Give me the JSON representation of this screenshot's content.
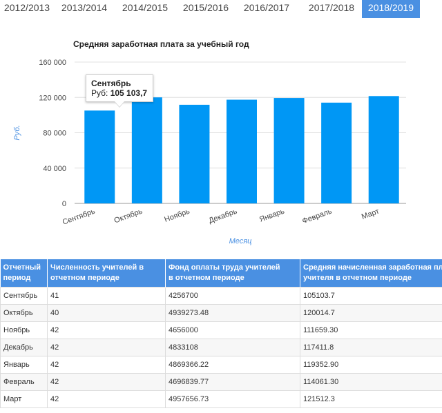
{
  "tabs": [
    {
      "label": "2012/2013",
      "active": false
    },
    {
      "label": "2013/2014",
      "active": false
    },
    {
      "label": "2014/2015",
      "active": false
    },
    {
      "label": "2015/2016",
      "active": false
    },
    {
      "label": "2016/2017",
      "active": false
    },
    {
      "label": "2017/2018",
      "active": false
    },
    {
      "label": "2018/2019",
      "active": true
    }
  ],
  "chart_data": {
    "type": "bar",
    "title": "Средняя заработная плата за учебный год",
    "xlabel": "Месяц",
    "ylabel": "Руб.",
    "categories": [
      "Сентябрь",
      "Октябрь",
      "Ноябрь",
      "Декабрь",
      "Январь",
      "Февраль",
      "Март"
    ],
    "values": [
      105103.7,
      120014.7,
      111659.3,
      117411.8,
      119352.9,
      114061.3,
      121512.3
    ],
    "ylim": [
      0,
      160000
    ],
    "yticks": [
      "0",
      "40 000",
      "80 000",
      "120 000",
      "160 000"
    ],
    "grid": true,
    "bar_color": "#0097f5",
    "tooltip": {
      "title": "Сентябрь",
      "label": "Руб:",
      "value": "105 103,7"
    }
  },
  "table": {
    "headers": [
      "Отчетный период",
      "Численность учителей в отчетном периоде",
      "Фонд оплаты труда учителей в отчетном периоде",
      "Средняя начисленная заработная плата учителя в отчетном периоде"
    ],
    "rows": [
      [
        "Сентябрь",
        "41",
        "4256700",
        "105103.7"
      ],
      [
        "Октябрь",
        "40",
        "4939273.48",
        "120014.7"
      ],
      [
        "Ноябрь",
        "42",
        "4656000",
        "111659.30"
      ],
      [
        "Декабрь",
        "42",
        "4833108",
        "117411.8"
      ],
      [
        "Январь",
        "42",
        "4869366.22",
        "119352.90"
      ],
      [
        "Февраль",
        "42",
        "4696839.77",
        "114061.30"
      ],
      [
        "Март",
        "42",
        "4957656.73",
        "121512.3"
      ]
    ]
  }
}
